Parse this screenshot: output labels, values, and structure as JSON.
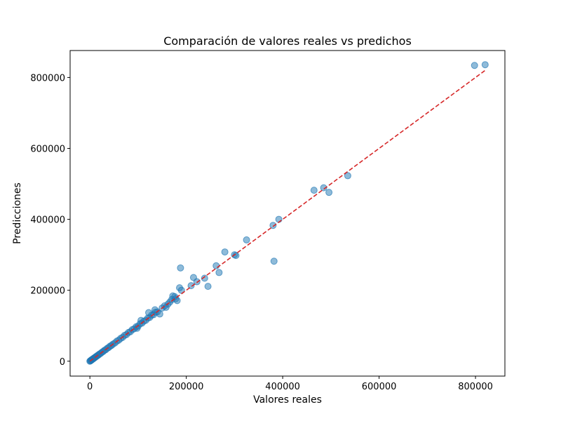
{
  "chart_data": {
    "type": "scatter",
    "title": "Comparación de valores reales vs predichos",
    "xlabel": "Valores reales",
    "ylabel": "Predicciones",
    "xlim": [
      -41000,
      861000
    ],
    "ylim": [
      -42000,
      876000
    ],
    "x_ticks": [
      0,
      200000,
      400000,
      600000,
      800000
    ],
    "y_ticks": [
      0,
      200000,
      400000,
      600000,
      800000
    ],
    "grid": false,
    "series": [
      {
        "color": "#1f77b4",
        "alpha": 0.5,
        "points": [
          [
            0,
            0
          ],
          [
            1000,
            1200
          ],
          [
            2000,
            1800
          ],
          [
            3000,
            3300
          ],
          [
            4000,
            3900
          ],
          [
            5000,
            5200
          ],
          [
            6000,
            6100
          ],
          [
            7500,
            7400
          ],
          [
            9000,
            9300
          ],
          [
            10500,
            10200
          ],
          [
            12000,
            12400
          ],
          [
            14000,
            13800
          ],
          [
            16000,
            16300
          ],
          [
            18000,
            17700
          ],
          [
            20000,
            20400
          ],
          [
            22500,
            22100
          ],
          [
            25000,
            25300
          ],
          [
            27500,
            27200
          ],
          [
            30000,
            30500
          ],
          [
            33000,
            32600
          ],
          [
            36000,
            36400
          ],
          [
            39000,
            38700
          ],
          [
            42000,
            42500
          ],
          [
            45000,
            44600
          ],
          [
            48000,
            48300
          ],
          [
            52000,
            51500
          ],
          [
            56000,
            56600
          ],
          [
            60000,
            59400
          ],
          [
            64000,
            64500
          ],
          [
            68000,
            67300
          ],
          [
            72000,
            72800
          ],
          [
            76000,
            75200
          ],
          [
            80000,
            80900
          ],
          [
            84000,
            83100
          ],
          [
            88000,
            89000
          ],
          [
            92000,
            91300
          ],
          [
            96000,
            97200
          ],
          [
            100000,
            98800
          ],
          [
            104000,
            105500
          ],
          [
            108000,
            107200
          ],
          [
            112000,
            113000
          ],
          [
            116000,
            115300
          ],
          [
            120000,
            121500
          ],
          [
            124000,
            123200
          ],
          [
            128000,
            129800
          ],
          [
            132000,
            131000
          ],
          [
            136000,
            138000
          ],
          [
            140000,
            139000
          ],
          [
            122000,
            137000
          ],
          [
            106000,
            115000
          ],
          [
            98000,
            93000
          ],
          [
            135000,
            145000
          ],
          [
            145000,
            133000
          ],
          [
            150000,
            150000
          ],
          [
            155000,
            156000
          ],
          [
            158000,
            152000
          ],
          [
            162000,
            161000
          ],
          [
            166000,
            167000
          ],
          [
            170000,
            174000
          ],
          [
            172000,
            184000
          ],
          [
            176000,
            182000
          ],
          [
            178000,
            176000
          ],
          [
            181000,
            171000
          ],
          [
            186000,
            207000
          ],
          [
            188000,
            263000
          ],
          [
            190000,
            200000
          ],
          [
            210000,
            213000
          ],
          [
            215000,
            236000
          ],
          [
            222000,
            224000
          ],
          [
            238000,
            234000
          ],
          [
            245000,
            211000
          ],
          [
            262000,
            269000
          ],
          [
            268000,
            250000
          ],
          [
            280000,
            308000
          ],
          [
            300000,
            300000
          ],
          [
            303000,
            298000
          ],
          [
            325000,
            342000
          ],
          [
            380000,
            383000
          ],
          [
            382000,
            282000
          ],
          [
            392000,
            400000
          ],
          [
            465000,
            482000
          ],
          [
            485000,
            489000
          ],
          [
            496000,
            476000
          ],
          [
            535000,
            523000
          ],
          [
            798000,
            834000
          ],
          [
            820000,
            836000
          ]
        ]
      }
    ],
    "reference_line": {
      "style": "dashed",
      "color": "#d62728",
      "from": [
        0,
        0
      ],
      "to": [
        820000,
        820000
      ]
    }
  }
}
